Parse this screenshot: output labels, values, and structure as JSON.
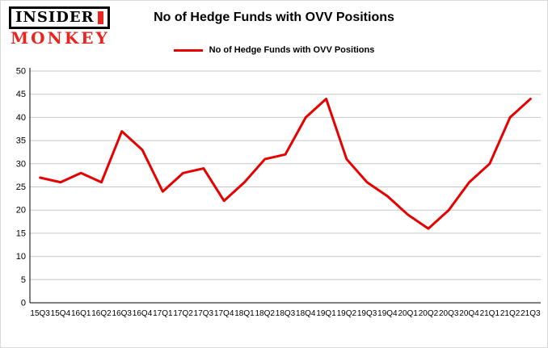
{
  "logo": {
    "line1": "INSIDER",
    "line2": "MONKEY",
    "accent_color": "#e8251f"
  },
  "header": {
    "title": "No of Hedge Funds with OVV Positions"
  },
  "legend": {
    "label": "No of Hedge Funds with OVV Positions",
    "color": "#e60000",
    "position": "top"
  },
  "chart_data": {
    "type": "line",
    "title": "No of Hedge Funds with OVV Positions",
    "categories": [
      "15Q3",
      "15Q4",
      "16Q1",
      "16Q2",
      "16Q3",
      "16Q4",
      "17Q1",
      "17Q2",
      "17Q3",
      "17Q4",
      "18Q1",
      "18Q2",
      "18Q3",
      "18Q4",
      "19Q1",
      "19Q2",
      "19Q3",
      "19Q4",
      "20Q1",
      "20Q2",
      "20Q3",
      "20Q4",
      "21Q1",
      "21Q2",
      "21Q3"
    ],
    "values": [
      27,
      26,
      28,
      26,
      37,
      33,
      24,
      28,
      29,
      22,
      26,
      31,
      32,
      40,
      44,
      31,
      26,
      23,
      19,
      16,
      20,
      26,
      30,
      40,
      44
    ],
    "xlabel": "",
    "ylabel": "",
    "ylim": [
      0,
      50
    ],
    "ytick_step": 5,
    "yticks": [
      0,
      5,
      10,
      15,
      20,
      25,
      30,
      35,
      40,
      45,
      50
    ],
    "grid": true,
    "grid_color": "#c6c6c6",
    "line_color": "#e60000",
    "legend_position": "top"
  }
}
